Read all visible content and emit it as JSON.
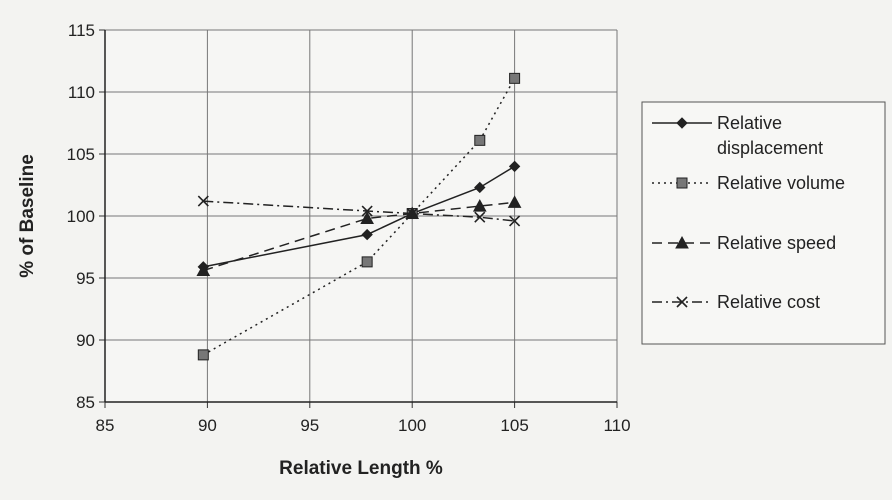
{
  "chart_data": {
    "type": "line",
    "title": "",
    "xlabel": "Relative Length %",
    "ylabel": "% of Baseline",
    "xlim": [
      85,
      110
    ],
    "ylim": [
      85,
      115
    ],
    "xticks": [
      85,
      90,
      95,
      100,
      105,
      110
    ],
    "yticks": [
      85,
      90,
      95,
      100,
      105,
      110,
      115
    ],
    "grid": true,
    "legend_position": "right",
    "series": [
      {
        "name": "Relative displacement",
        "legend_lines": [
          "Relative",
          "displacement"
        ],
        "marker": "diamond",
        "line_style": "solid",
        "points": [
          [
            89.8,
            95.9
          ],
          [
            97.8,
            98.5
          ],
          [
            100.0,
            100.2
          ],
          [
            103.3,
            102.3
          ],
          [
            105.0,
            104.0
          ]
        ]
      },
      {
        "name": "Relative volume",
        "legend_lines": [
          "Relative volume"
        ],
        "marker": "square",
        "line_style": "dotted",
        "points": [
          [
            89.8,
            88.8
          ],
          [
            97.8,
            96.3
          ],
          [
            100.0,
            100.2
          ],
          [
            103.3,
            106.1
          ],
          [
            105.0,
            111.1
          ]
        ]
      },
      {
        "name": "Relative speed",
        "legend_lines": [
          "Relative speed"
        ],
        "marker": "triangle",
        "line_style": "dashed",
        "points": [
          [
            89.8,
            95.6
          ],
          [
            97.8,
            99.8
          ],
          [
            100.0,
            100.2
          ],
          [
            103.3,
            100.8
          ],
          [
            105.0,
            101.1
          ]
        ]
      },
      {
        "name": "Relative cost",
        "legend_lines": [
          "Relative cost"
        ],
        "marker": "x",
        "line_style": "dash-dot",
        "points": [
          [
            89.8,
            101.2
          ],
          [
            97.8,
            100.4
          ],
          [
            100.0,
            100.2
          ],
          [
            103.3,
            99.9
          ],
          [
            105.0,
            99.6
          ]
        ]
      }
    ]
  }
}
